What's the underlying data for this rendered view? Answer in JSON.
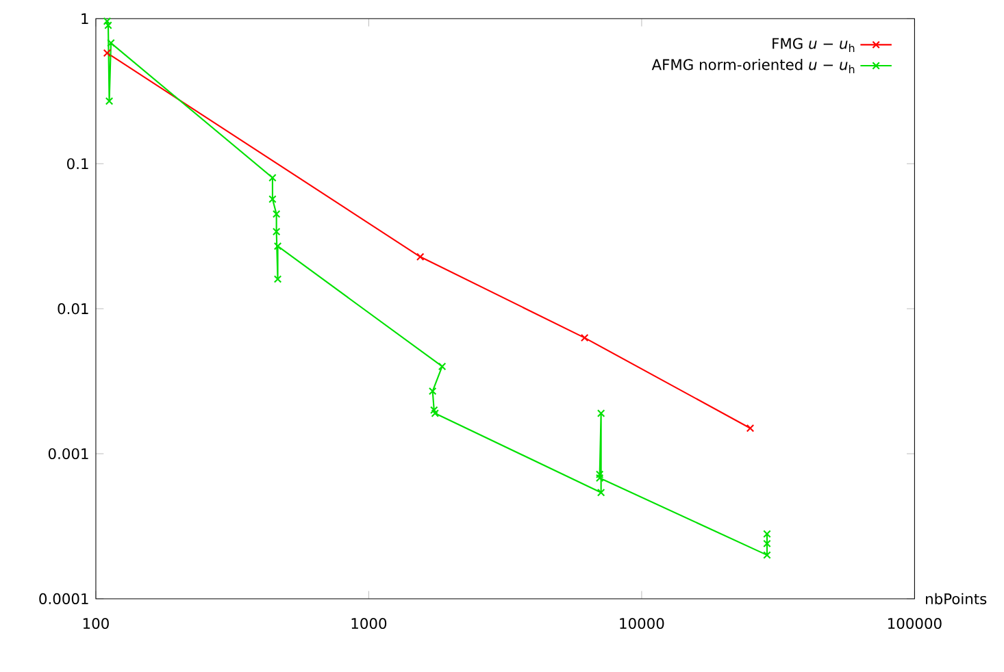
{
  "chart_data": {
    "type": "line",
    "xlabel": "nbPoints",
    "log": "xy",
    "legend": "top right",
    "marker": "cross",
    "line_style": "solid",
    "xlim": [
      100,
      100000
    ],
    "ylim": [
      0.0001,
      1
    ],
    "xticks": [
      100,
      1000,
      10000,
      100000
    ],
    "yticks": [
      0.0001,
      0.001,
      0.01,
      0.1,
      1
    ],
    "series": [
      {
        "name": "FMG *u* − *u*$_{h}$",
        "color": "#ff0000",
        "x": [
          110,
          1545,
          6180,
          25000
        ],
        "values": [
          0.58,
          0.0228,
          0.0063,
          0.0015
        ]
      },
      {
        "name": "AFMG norm-oriented *u* − *u*$_{h}$",
        "color": "#00e000",
        "x": [
          110,
          111,
          112,
          113.6,
          444,
          444,
          459,
          459,
          464,
          464,
          1858,
          1714,
          1735,
          1750,
          7100,
          7100,
          7020,
          7020,
          28800,
          28800,
          28800
        ],
        "values": [
          0.96,
          0.9,
          0.27,
          0.68,
          0.08,
          0.057,
          0.045,
          0.034,
          0.016,
          0.027,
          0.004,
          0.0027,
          0.002,
          0.0019,
          0.00054,
          0.0019,
          0.00072,
          0.00068,
          0.0002,
          0.00028,
          0.00024
        ]
      }
    ]
  }
}
